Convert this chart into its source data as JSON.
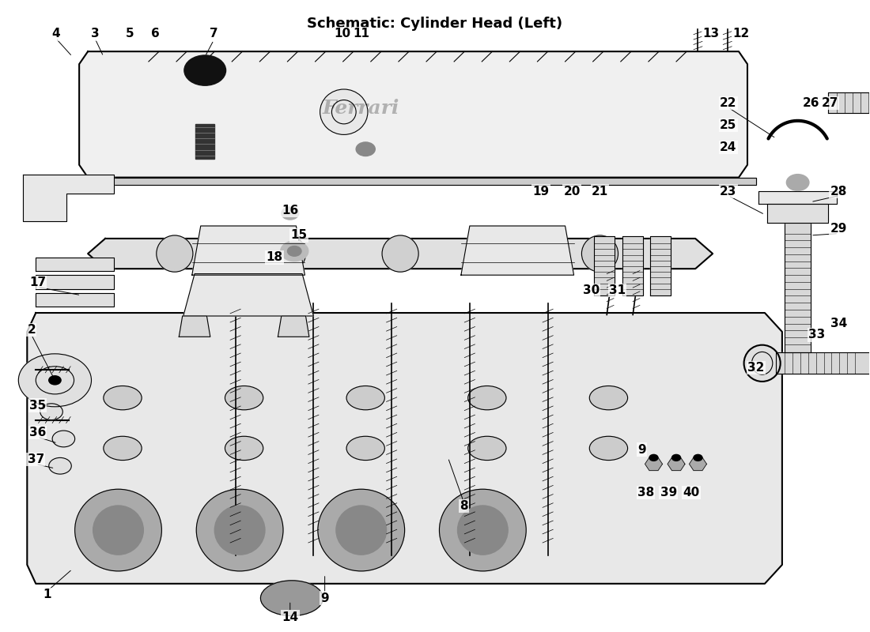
{
  "title": "Schematic: Cylinder Head (Left)",
  "background_color": "#ffffff",
  "line_color": "#000000",
  "label_color": "#000000",
  "title_fontsize": 13,
  "label_fontsize": 11,
  "fig_width": 11.0,
  "fig_height": 8.0
}
